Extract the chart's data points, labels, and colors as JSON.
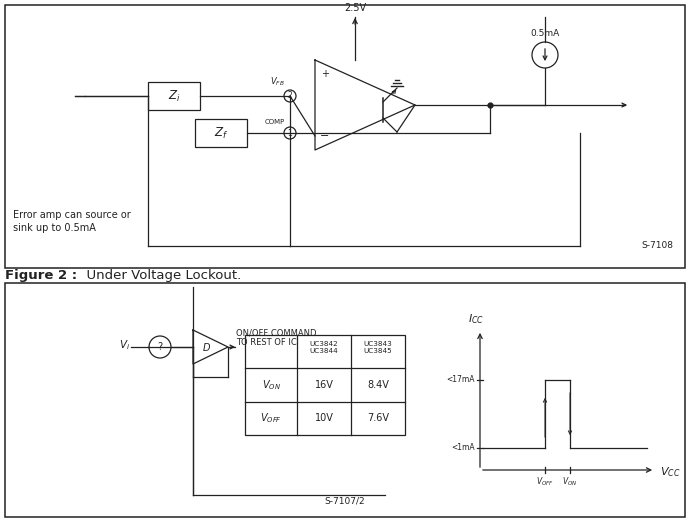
{
  "fig_width": 6.9,
  "fig_height": 5.25,
  "dpi": 100,
  "bg_color": "#ffffff",
  "line_color": "#222222",
  "text_color": "#222222",
  "fig1_note_line1": "Error amp can source or",
  "fig1_note_line2": "sink up to 0.5mA",
  "fig1_code": "S-7108",
  "fig2_caption_bold": "Figure 2 :",
  "fig2_caption_normal": "  Under Voltage Lockout.",
  "fig2_code": "S-7107/2",
  "tbl_header_col2": "UC3842\nUC3844",
  "tbl_header_col3": "UC3843\nUC3845",
  "tbl_von_label": "V_ON",
  "tbl_von_c2": "16V",
  "tbl_von_c3": "8.4V",
  "tbl_voff_label": "V_OFF",
  "tbl_voff_c2": "10V",
  "tbl_voff_c3": "7.6V",
  "icc_label": "I_CC",
  "vcc_label": "V_CC",
  "high_label": "<17mA",
  "low_label": "<1mA",
  "voff_label": "V_OFF",
  "von_label": "V_ON"
}
